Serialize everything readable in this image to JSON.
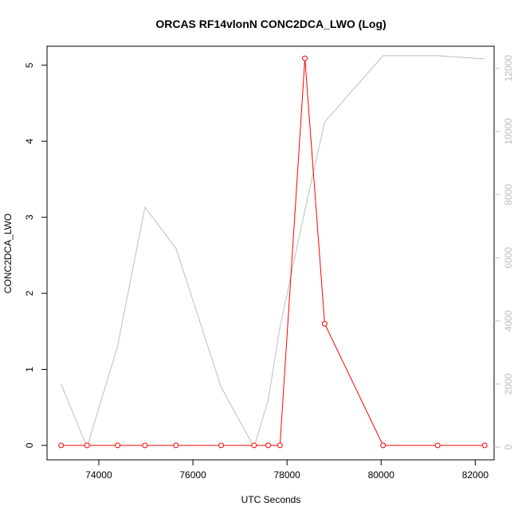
{
  "chart_data": {
    "type": "line",
    "title": "ORCAS RF14vlonN CONC2DCA_LWO (Log)",
    "xlabel": "UTC Seconds",
    "ylabel": "CONC2DCA_LWO",
    "y2label": "",
    "xlim": [
      72900,
      82400
    ],
    "ylim": [
      -0.19,
      5.25
    ],
    "y2lim": [
      -400,
      12700
    ],
    "x_ticks": [
      74000,
      76000,
      78000,
      80000,
      82000
    ],
    "y_ticks": [
      0,
      1,
      2,
      3,
      4,
      5
    ],
    "y2_ticks": [
      0,
      2000,
      4000,
      6000,
      8000,
      10000,
      12000
    ],
    "grid": false,
    "legend": "none",
    "series": [
      {
        "axis": "left",
        "color": "#ff0000",
        "marker": "open-circle",
        "x": [
          73200,
          73750,
          74400,
          74980,
          75640,
          76600,
          77300,
          77600,
          77850,
          78380,
          78800,
          80040,
          81200,
          82200
        ],
        "y": [
          0.0,
          0.0,
          0.0,
          0.0,
          0.0,
          0.0,
          0.0,
          0.0,
          0.0,
          5.09,
          1.6,
          0.0,
          0.0,
          0.0
        ]
      },
      {
        "axis": "right",
        "color": "#bebebe",
        "marker": "none",
        "x": [
          73200,
          73750,
          74400,
          74980,
          75640,
          76600,
          77300,
          77600,
          77850,
          78380,
          78800,
          80040,
          81200,
          82200
        ],
        "y": [
          2000,
          0,
          3200,
          7600,
          6300,
          1900,
          0,
          1500,
          3800,
          7500,
          10300,
          12400,
          12400,
          12300
        ]
      }
    ]
  }
}
